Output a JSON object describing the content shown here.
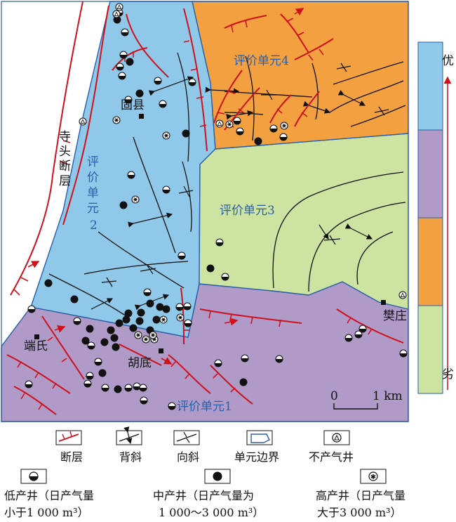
{
  "units": [
    {
      "id": "unit1",
      "label": "评价单元1",
      "color": "#b09ac8"
    },
    {
      "id": "unit2",
      "label": "评价单元2",
      "color": "#8fc8e8"
    },
    {
      "id": "unit3",
      "label": "评价单元3",
      "color": "#cde3a2"
    },
    {
      "id": "unit4",
      "label": "评价单元4",
      "color": "#f2a040"
    }
  ],
  "unit2_label_chars": [
    "评",
    "价",
    "单",
    "元",
    "2"
  ],
  "fault_name_chars": [
    "寺",
    "头",
    "断",
    "层"
  ],
  "places": {
    "guxian": "固县",
    "duanshi": "端氏",
    "hudi": "胡底",
    "fanzhuang": "樊庄"
  },
  "scale": {
    "zero": "0",
    "value": "1 km"
  },
  "ranking": {
    "colors": [
      "#8fc8e8",
      "#b09ac8",
      "#f2a040",
      "#cde3a2"
    ],
    "top": "优",
    "bottom": "劣"
  },
  "legend": {
    "fault": "断层",
    "anticline": "背斜",
    "syncline": "向斜",
    "boundary": "单元边界",
    "dry_well": "不产气井",
    "low_well_line1": "低产井（日产气量",
    "low_well_line2": "小于1 000 m³）",
    "mid_well_line1": "中产井（日产气量为",
    "mid_well_line2": "1 000～3 000 m³）",
    "high_well_line1": "高产井（日产气量",
    "high_well_line2": "大于3 000 m³）"
  }
}
